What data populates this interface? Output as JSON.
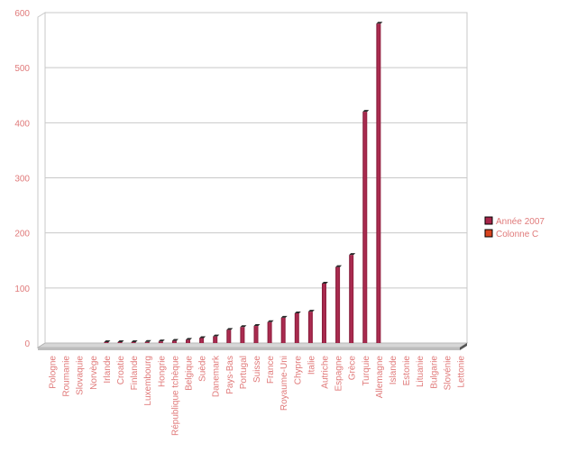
{
  "chart_data": {
    "type": "bar",
    "title": "",
    "xlabel": "",
    "ylabel": "",
    "ylim": [
      0,
      600
    ],
    "yticks": [
      0,
      100,
      200,
      300,
      400,
      500,
      600
    ],
    "grid": true,
    "legend_position": "right",
    "categories": [
      "Pologne",
      "Roumanie",
      "Slovaquie",
      "Norvège",
      "Irlande",
      "Croatie",
      "Finlande",
      "Luxembourg",
      "Hongrie",
      "République tchèque",
      "Belgique",
      "Suède",
      "Danemark",
      "Pays-Bas",
      "Portugal",
      "Suisse",
      "France",
      "Royaume-Uni",
      "Chypre",
      "Italie",
      "Autriche",
      "Espagne",
      "Grèce",
      "Turquie",
      "Allemagne",
      "Islande",
      "Estonie",
      "Lituanie",
      "Bulgarie",
      "Slovénie",
      "Lettonie"
    ],
    "series": [
      {
        "name": "Année 2007",
        "color": "#a8264a",
        "values": [
          0,
          0,
          0,
          0,
          1,
          1,
          1,
          2,
          3,
          4,
          6,
          9,
          12,
          24,
          29,
          31,
          38,
          46,
          54,
          57,
          108,
          138,
          160,
          420,
          580,
          0,
          0,
          0,
          0,
          0,
          0
        ]
      },
      {
        "name": "Colonne C",
        "color": "#d9441f",
        "values": [
          0,
          0,
          0,
          0,
          0,
          0,
          0,
          0,
          0,
          0,
          0,
          0,
          0,
          0,
          0,
          0,
          0,
          0,
          0,
          0,
          0,
          0,
          0,
          0,
          0,
          0,
          0,
          0,
          0,
          0,
          0
        ]
      }
    ]
  }
}
